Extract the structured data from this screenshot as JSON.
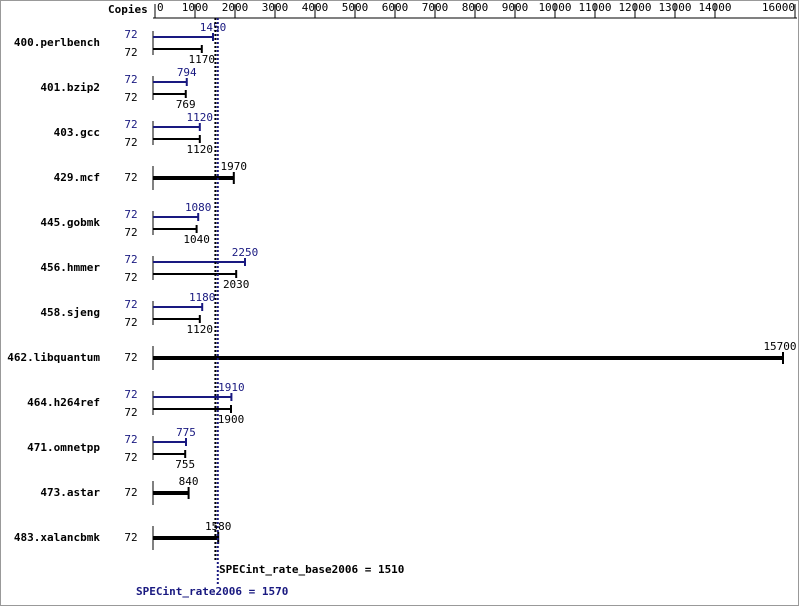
{
  "chart_data": {
    "type": "bar",
    "orientation": "horizontal",
    "copies_header": "Copies",
    "categories": [
      "400.perlbench",
      "401.bzip2",
      "403.gcc",
      "429.mcf",
      "445.gobmk",
      "456.hmmer",
      "458.sjeng",
      "462.libquantum",
      "464.h264ref",
      "471.omnetpp",
      "473.astar",
      "483.xalancbmk"
    ],
    "series": [
      {
        "color": "#191980",
        "copies": [
          72,
          72,
          72,
          null,
          72,
          72,
          72,
          null,
          72,
          72,
          null,
          null
        ],
        "values": [
          1450,
          794,
          1120,
          null,
          1080,
          2250,
          1180,
          null,
          1910,
          775,
          null,
          null
        ]
      },
      {
        "color": "#000000",
        "copies": [
          72,
          72,
          72,
          72,
          72,
          72,
          72,
          72,
          72,
          72,
          72,
          72
        ],
        "values": [
          1170,
          769,
          1120,
          1970,
          1040,
          2030,
          1120,
          15700,
          1900,
          755,
          840,
          1580
        ]
      }
    ],
    "reference_lines": [
      {
        "label": "SPECint_rate_base2006 = 1510",
        "value": 1510,
        "color": "#000000"
      },
      {
        "label": "SPECint_rate2006 = 1570",
        "value": 1570,
        "color": "#191980"
      }
    ],
    "xlim": [
      0,
      16000
    ],
    "xticks": [
      0,
      1000,
      2000,
      3000,
      4000,
      5000,
      6000,
      7000,
      8000,
      9000,
      10000,
      11000,
      12000,
      13000,
      14000,
      16000
    ]
  }
}
